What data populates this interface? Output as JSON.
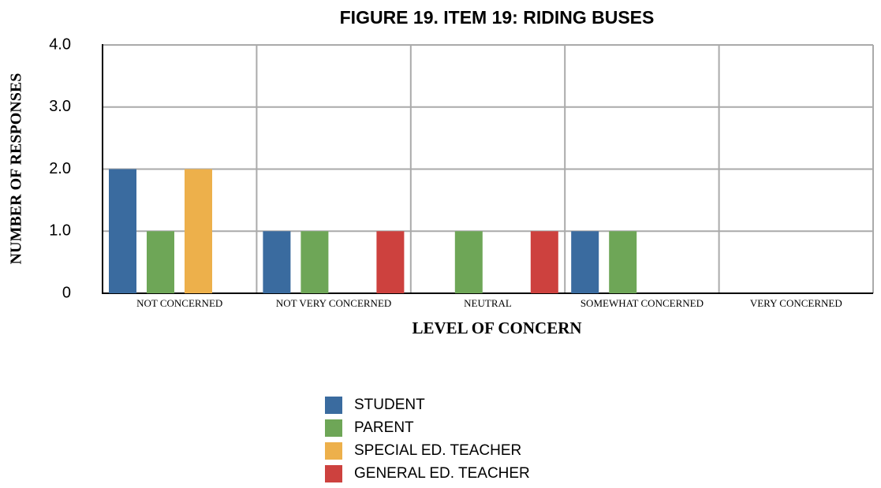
{
  "chart_data": {
    "type": "bar",
    "title": "FIGURE 19. ITEM 19: RIDING BUSES",
    "x_label": "LEVEL OF CONCERN",
    "y_label": "NUMBER OF RESPONSES",
    "categories": [
      "NOT CONCERNED",
      "NOT VERY CONCERNED",
      "NEUTRAL",
      "SOMEWHAT CONCERNED",
      "VERY CONCERNED"
    ],
    "series": [
      {
        "name": "STUDENT",
        "color": "#3a6b9f",
        "values": [
          2,
          1,
          0,
          1,
          0
        ]
      },
      {
        "name": "PARENT",
        "color": "#6ea657",
        "values": [
          1,
          1,
          1,
          1,
          0
        ]
      },
      {
        "name": "SPECIAL ED. TEACHER",
        "color": "#edb04b",
        "values": [
          2,
          0,
          0,
          0,
          0
        ]
      },
      {
        "name": "GENERAL ED. TEACHER",
        "color": "#cd413e",
        "values": [
          0,
          1,
          1,
          0,
          0
        ]
      }
    ],
    "ylim": [
      0,
      4
    ],
    "yticks": [
      0,
      {
        "value": 1,
        "label": "1.0"
      },
      {
        "value": 2,
        "label": "2.0"
      },
      {
        "value": 3,
        "label": "3.0"
      },
      {
        "value": 4,
        "label": "4.0"
      }
    ],
    "grid": true,
    "legend": "bottom"
  }
}
